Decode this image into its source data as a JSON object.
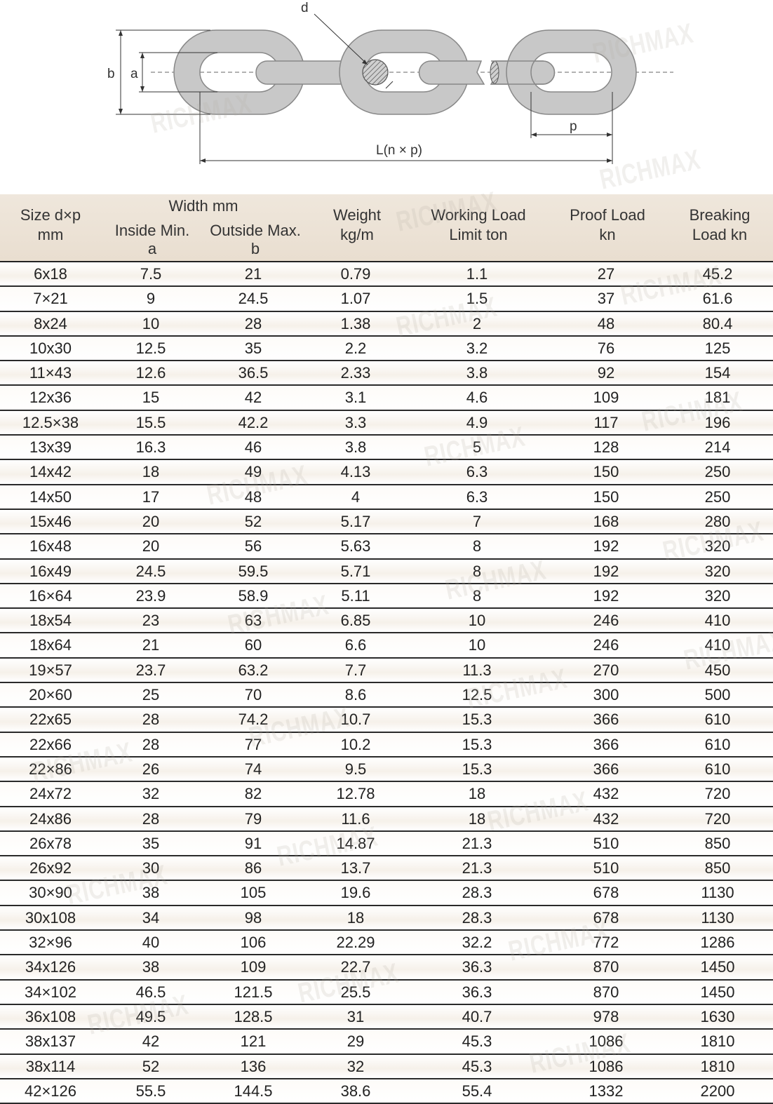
{
  "diagram": {
    "labels": {
      "d": "d",
      "b": "b",
      "a": "a",
      "p": "p",
      "L": "L(n × p)"
    },
    "colors": {
      "link_fill": "#c8c8c8",
      "link_stroke": "#888888"
    }
  },
  "watermark": "RICHMAX",
  "table": {
    "headers": {
      "size": [
        "Size d×p",
        "mm"
      ],
      "width_group": "Width mm",
      "inside": [
        "Inside Min.",
        "a"
      ],
      "outside": [
        "Outside Max.",
        "b"
      ],
      "weight": [
        "Weight",
        "kg/m"
      ],
      "wll": [
        "Working Load",
        "Limit ton"
      ],
      "proof": [
        "Proof Load",
        "kn"
      ],
      "breaking": [
        "Breaking",
        "Load kn"
      ]
    },
    "rows": [
      [
        "6x18",
        "7.5",
        "21",
        "0.79",
        "1.1",
        "27",
        "45.2"
      ],
      [
        "7×21",
        "9",
        "24.5",
        "1.07",
        "1.5",
        "37",
        "61.6"
      ],
      [
        "8x24",
        "10",
        "28",
        "1.38",
        "2",
        "48",
        "80.4"
      ],
      [
        "10x30",
        "12.5",
        "35",
        "2.2",
        "3.2",
        "76",
        "125"
      ],
      [
        "11×43",
        "12.6",
        "36.5",
        "2.33",
        "3.8",
        "92",
        "154"
      ],
      [
        "12x36",
        "15",
        "42",
        "3.1",
        "4.6",
        "109",
        "181"
      ],
      [
        "12.5×38",
        "15.5",
        "42.2",
        "3.3",
        "4.9",
        "117",
        "196"
      ],
      [
        "13x39",
        "16.3",
        "46",
        "3.8",
        "5",
        "128",
        "214"
      ],
      [
        "14x42",
        "18",
        "49",
        "4.13",
        "6.3",
        "150",
        "250"
      ],
      [
        "14x50",
        "17",
        "48",
        "4",
        "6.3",
        "150",
        "250"
      ],
      [
        "15x46",
        "20",
        "52",
        "5.17",
        "7",
        "168",
        "280"
      ],
      [
        "16x48",
        "20",
        "56",
        "5.63",
        "8",
        "192",
        "320"
      ],
      [
        "16x49",
        "24.5",
        "59.5",
        "5.71",
        "8",
        "192",
        "320"
      ],
      [
        "16×64",
        "23.9",
        "58.9",
        "5.11",
        "8",
        "192",
        "320"
      ],
      [
        "18x54",
        "23",
        "63",
        "6.85",
        "10",
        "246",
        "410"
      ],
      [
        "18x64",
        "21",
        "60",
        "6.6",
        "10",
        "246",
        "410"
      ],
      [
        "19×57",
        "23.7",
        "63.2",
        "7.7",
        "11.3",
        "270",
        "450"
      ],
      [
        "20×60",
        "25",
        "70",
        "8.6",
        "12.5",
        "300",
        "500"
      ],
      [
        "22x65",
        "28",
        "74.2",
        "10.7",
        "15.3",
        "366",
        "610"
      ],
      [
        "22x66",
        "28",
        "77",
        "10.2",
        "15.3",
        "366",
        "610"
      ],
      [
        "22×86",
        "26",
        "74",
        "9.5",
        "15.3",
        "366",
        "610"
      ],
      [
        "24x72",
        "32",
        "82",
        "12.78",
        "18",
        "432",
        "720"
      ],
      [
        "24x86",
        "28",
        "79",
        "11.6",
        "18",
        "432",
        "720"
      ],
      [
        "26x78",
        "35",
        "91",
        "14.87",
        "21.3",
        "510",
        "850"
      ],
      [
        "26x92",
        "30",
        "86",
        "13.7",
        "21.3",
        "510",
        "850"
      ],
      [
        "30×90",
        "38",
        "105",
        "19.6",
        "28.3",
        "678",
        "1130"
      ],
      [
        "30x108",
        "34",
        "98",
        "18",
        "28.3",
        "678",
        "1130"
      ],
      [
        "32×96",
        "40",
        "106",
        "22.29",
        "32.2",
        "772",
        "1286"
      ],
      [
        "34x126",
        "38",
        "109",
        "22.7",
        "36.3",
        "870",
        "1450"
      ],
      [
        "34×102",
        "46.5",
        "121.5",
        "25.5",
        "36.3",
        "870",
        "1450"
      ],
      [
        "36x108",
        "49.5",
        "128.5",
        "31",
        "40.7",
        "978",
        "1630"
      ],
      [
        "38x137",
        "42",
        "121",
        "29",
        "45.3",
        "1086",
        "1810"
      ],
      [
        "38x114",
        "52",
        "136",
        "32",
        "45.3",
        "1086",
        "1810"
      ],
      [
        "42×126",
        "55.5",
        "144.5",
        "38.6",
        "55.4",
        "1332",
        "2200"
      ]
    ]
  }
}
